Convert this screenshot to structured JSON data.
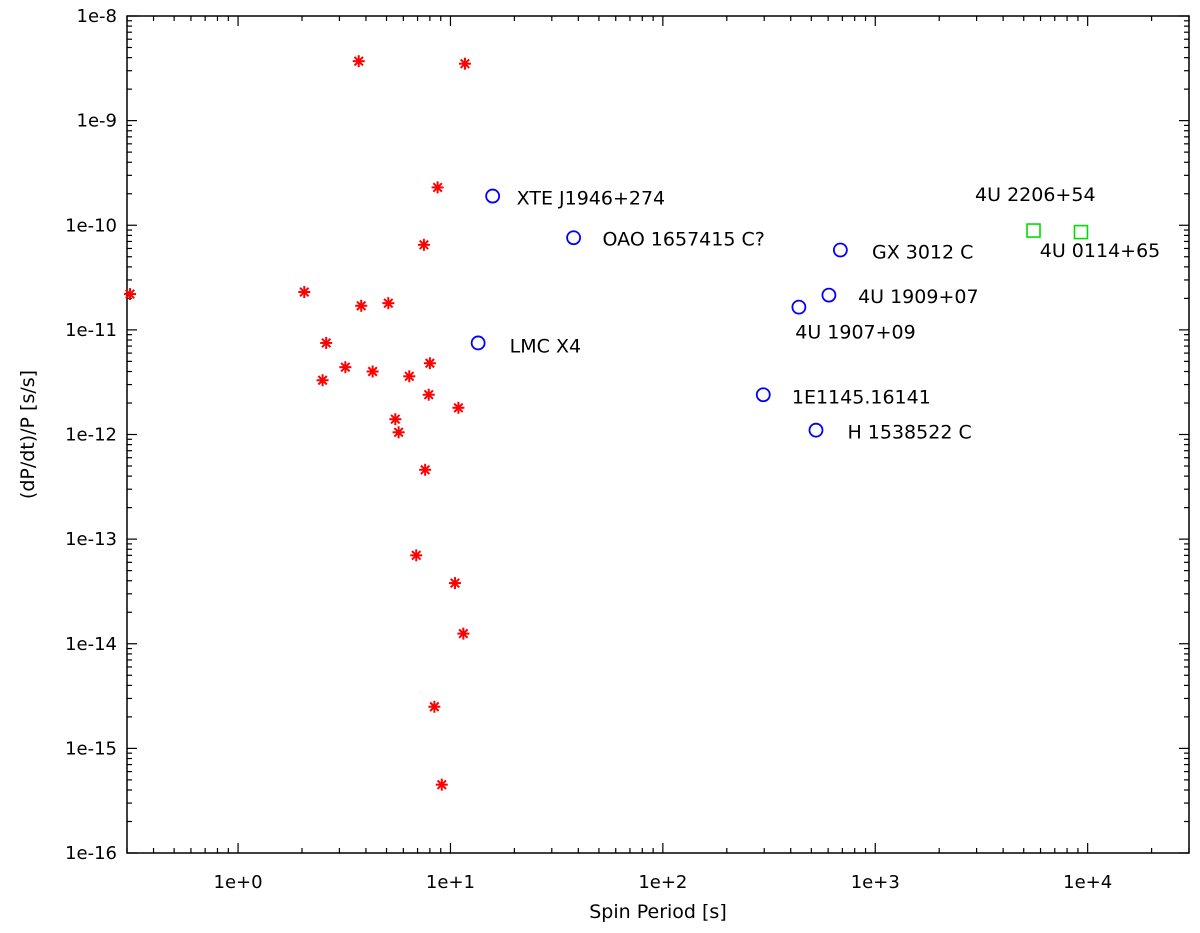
{
  "chart_data": {
    "type": "scatter",
    "title": "",
    "xlabel": "Spin Period [s]",
    "ylabel": "(dP/dt)/P [s/s]",
    "xscale": "log",
    "yscale": "log",
    "xlim": [
      0.3,
      30000
    ],
    "ylim": [
      1e-16,
      1e-08
    ],
    "grid": false,
    "x_tick_values": [
      1,
      10,
      100,
      1000,
      10000
    ],
    "x_tick_labels": [
      "1e+0",
      "1e+1",
      "1e+2",
      "1e+3",
      "1e+4"
    ],
    "y_tick_values": [
      1e-08,
      1e-09,
      1e-10,
      1e-11,
      1e-12,
      1e-13,
      1e-14,
      1e-15,
      1e-16
    ],
    "y_tick_labels": [
      "1e-8",
      "1e-9",
      "1e-10",
      "1e-11",
      "1e-12",
      "1e-13",
      "1e-14",
      "1e-15",
      "1e-16"
    ],
    "series": [
      {
        "name": "asterisks",
        "marker": "asterisk",
        "color": "#ff0000",
        "points": [
          {
            "x": 0.31,
            "y": 2.2e-11
          },
          {
            "x": 2.05,
            "y": 2.3e-11
          },
          {
            "x": 2.5,
            "y": 3.3e-12
          },
          {
            "x": 2.6,
            "y": 7.5e-12
          },
          {
            "x": 3.2,
            "y": 4.4e-12
          },
          {
            "x": 3.7,
            "y": 3.7e-09
          },
          {
            "x": 3.8,
            "y": 1.7e-11
          },
          {
            "x": 4.3,
            "y": 4e-12
          },
          {
            "x": 5.1,
            "y": 1.8e-11
          },
          {
            "x": 5.5,
            "y": 1.4e-12
          },
          {
            "x": 5.7,
            "y": 1.05e-12
          },
          {
            "x": 6.4,
            "y": 3.6e-12
          },
          {
            "x": 6.9,
            "y": 7e-14
          },
          {
            "x": 7.5,
            "y": 6.5e-11
          },
          {
            "x": 7.6,
            "y": 4.6e-13
          },
          {
            "x": 7.9,
            "y": 2.4e-12
          },
          {
            "x": 8.0,
            "y": 4.8e-12
          },
          {
            "x": 8.4,
            "y": 2.5e-15
          },
          {
            "x": 8.7,
            "y": 2.3e-10
          },
          {
            "x": 9.1,
            "y": 4.5e-16
          },
          {
            "x": 10.5,
            "y": 3.8e-14
          },
          {
            "x": 10.9,
            "y": 1.8e-12
          },
          {
            "x": 11.5,
            "y": 1.25e-14
          },
          {
            "x": 11.7,
            "y": 3.5e-09
          }
        ]
      },
      {
        "name": "circles",
        "marker": "circle",
        "color": "#0000ff",
        "points": [
          {
            "x": 13.5,
            "y": 7.5e-12
          },
          {
            "x": 15.8,
            "y": 1.9e-10
          },
          {
            "x": 38,
            "y": 7.6e-11
          },
          {
            "x": 297,
            "y": 2.4e-12
          },
          {
            "x": 437,
            "y": 1.65e-11
          },
          {
            "x": 526,
            "y": 1.1e-12
          },
          {
            "x": 605,
            "y": 2.15e-11
          },
          {
            "x": 685,
            "y": 5.8e-11
          }
        ]
      },
      {
        "name": "squares",
        "marker": "square",
        "color": "#00dd00",
        "points": [
          {
            "x": 5560,
            "y": 8.9e-11
          },
          {
            "x": 9300,
            "y": 8.6e-11
          }
        ]
      }
    ],
    "annotations": [
      {
        "text": "XTE J1946+274",
        "x": 20.5,
        "y": 1.85e-10
      },
      {
        "text": "OAO 1657415  C?",
        "x": 52,
        "y": 7.5e-11
      },
      {
        "text": "GX 3012  C",
        "x": 965,
        "y": 5.6e-11
      },
      {
        "text": "4U 2206+54",
        "x": 2950,
        "y": 2e-10
      },
      {
        "text": "4U 0114+65",
        "x": 5950,
        "y": 5.8e-11
      },
      {
        "text": "4U 1909+07",
        "x": 830,
        "y": 2.1e-11
      },
      {
        "text": "4U 1907+09",
        "x": 420,
        "y": 9.6e-12
      },
      {
        "text": "LMC X4",
        "x": 19,
        "y": 7.1e-12
      },
      {
        "text": "1E1145.16141",
        "x": 405,
        "y": 2.3e-12
      },
      {
        "text": "H 1538522  C",
        "x": 740,
        "y": 1.07e-12
      }
    ]
  }
}
